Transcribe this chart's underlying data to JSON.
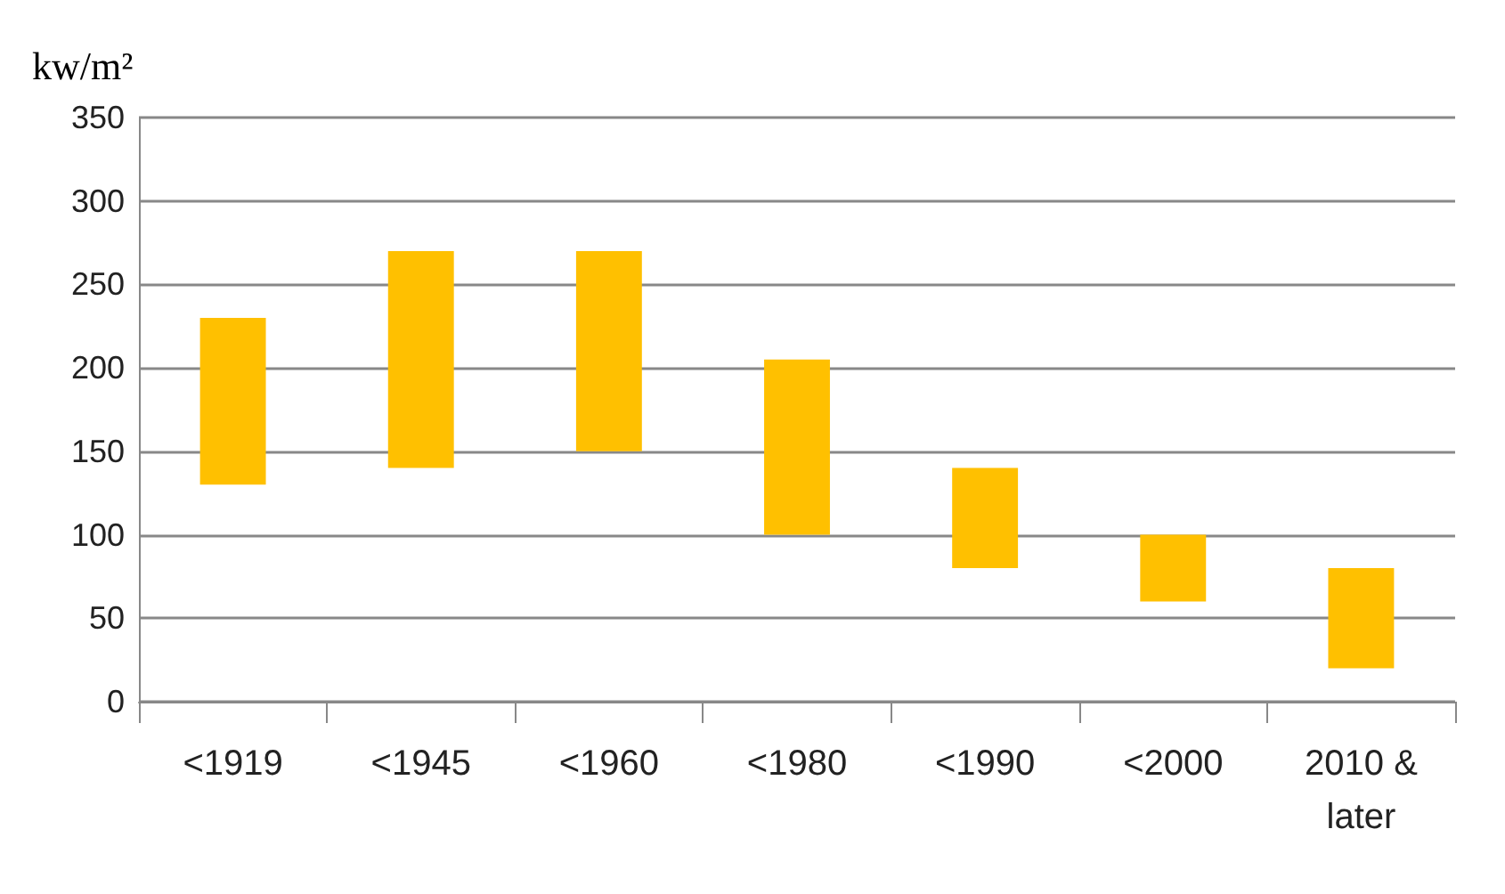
{
  "chart_data": {
    "type": "bar",
    "ylabel": "kw/m²",
    "categories": [
      "<1919",
      "<1945",
      "<1960",
      "<1980",
      "<1990",
      "<2000",
      "2010 & later"
    ],
    "values": [
      100,
      130,
      120,
      105,
      60,
      40,
      60
    ],
    "base": [
      130,
      140,
      150,
      100,
      80,
      60,
      20
    ],
    "color": "#ffc000",
    "ylim": [
      0,
      350
    ],
    "yticks": [
      0,
      50,
      100,
      150,
      200,
      250,
      300,
      350
    ],
    "grid": "y"
  }
}
